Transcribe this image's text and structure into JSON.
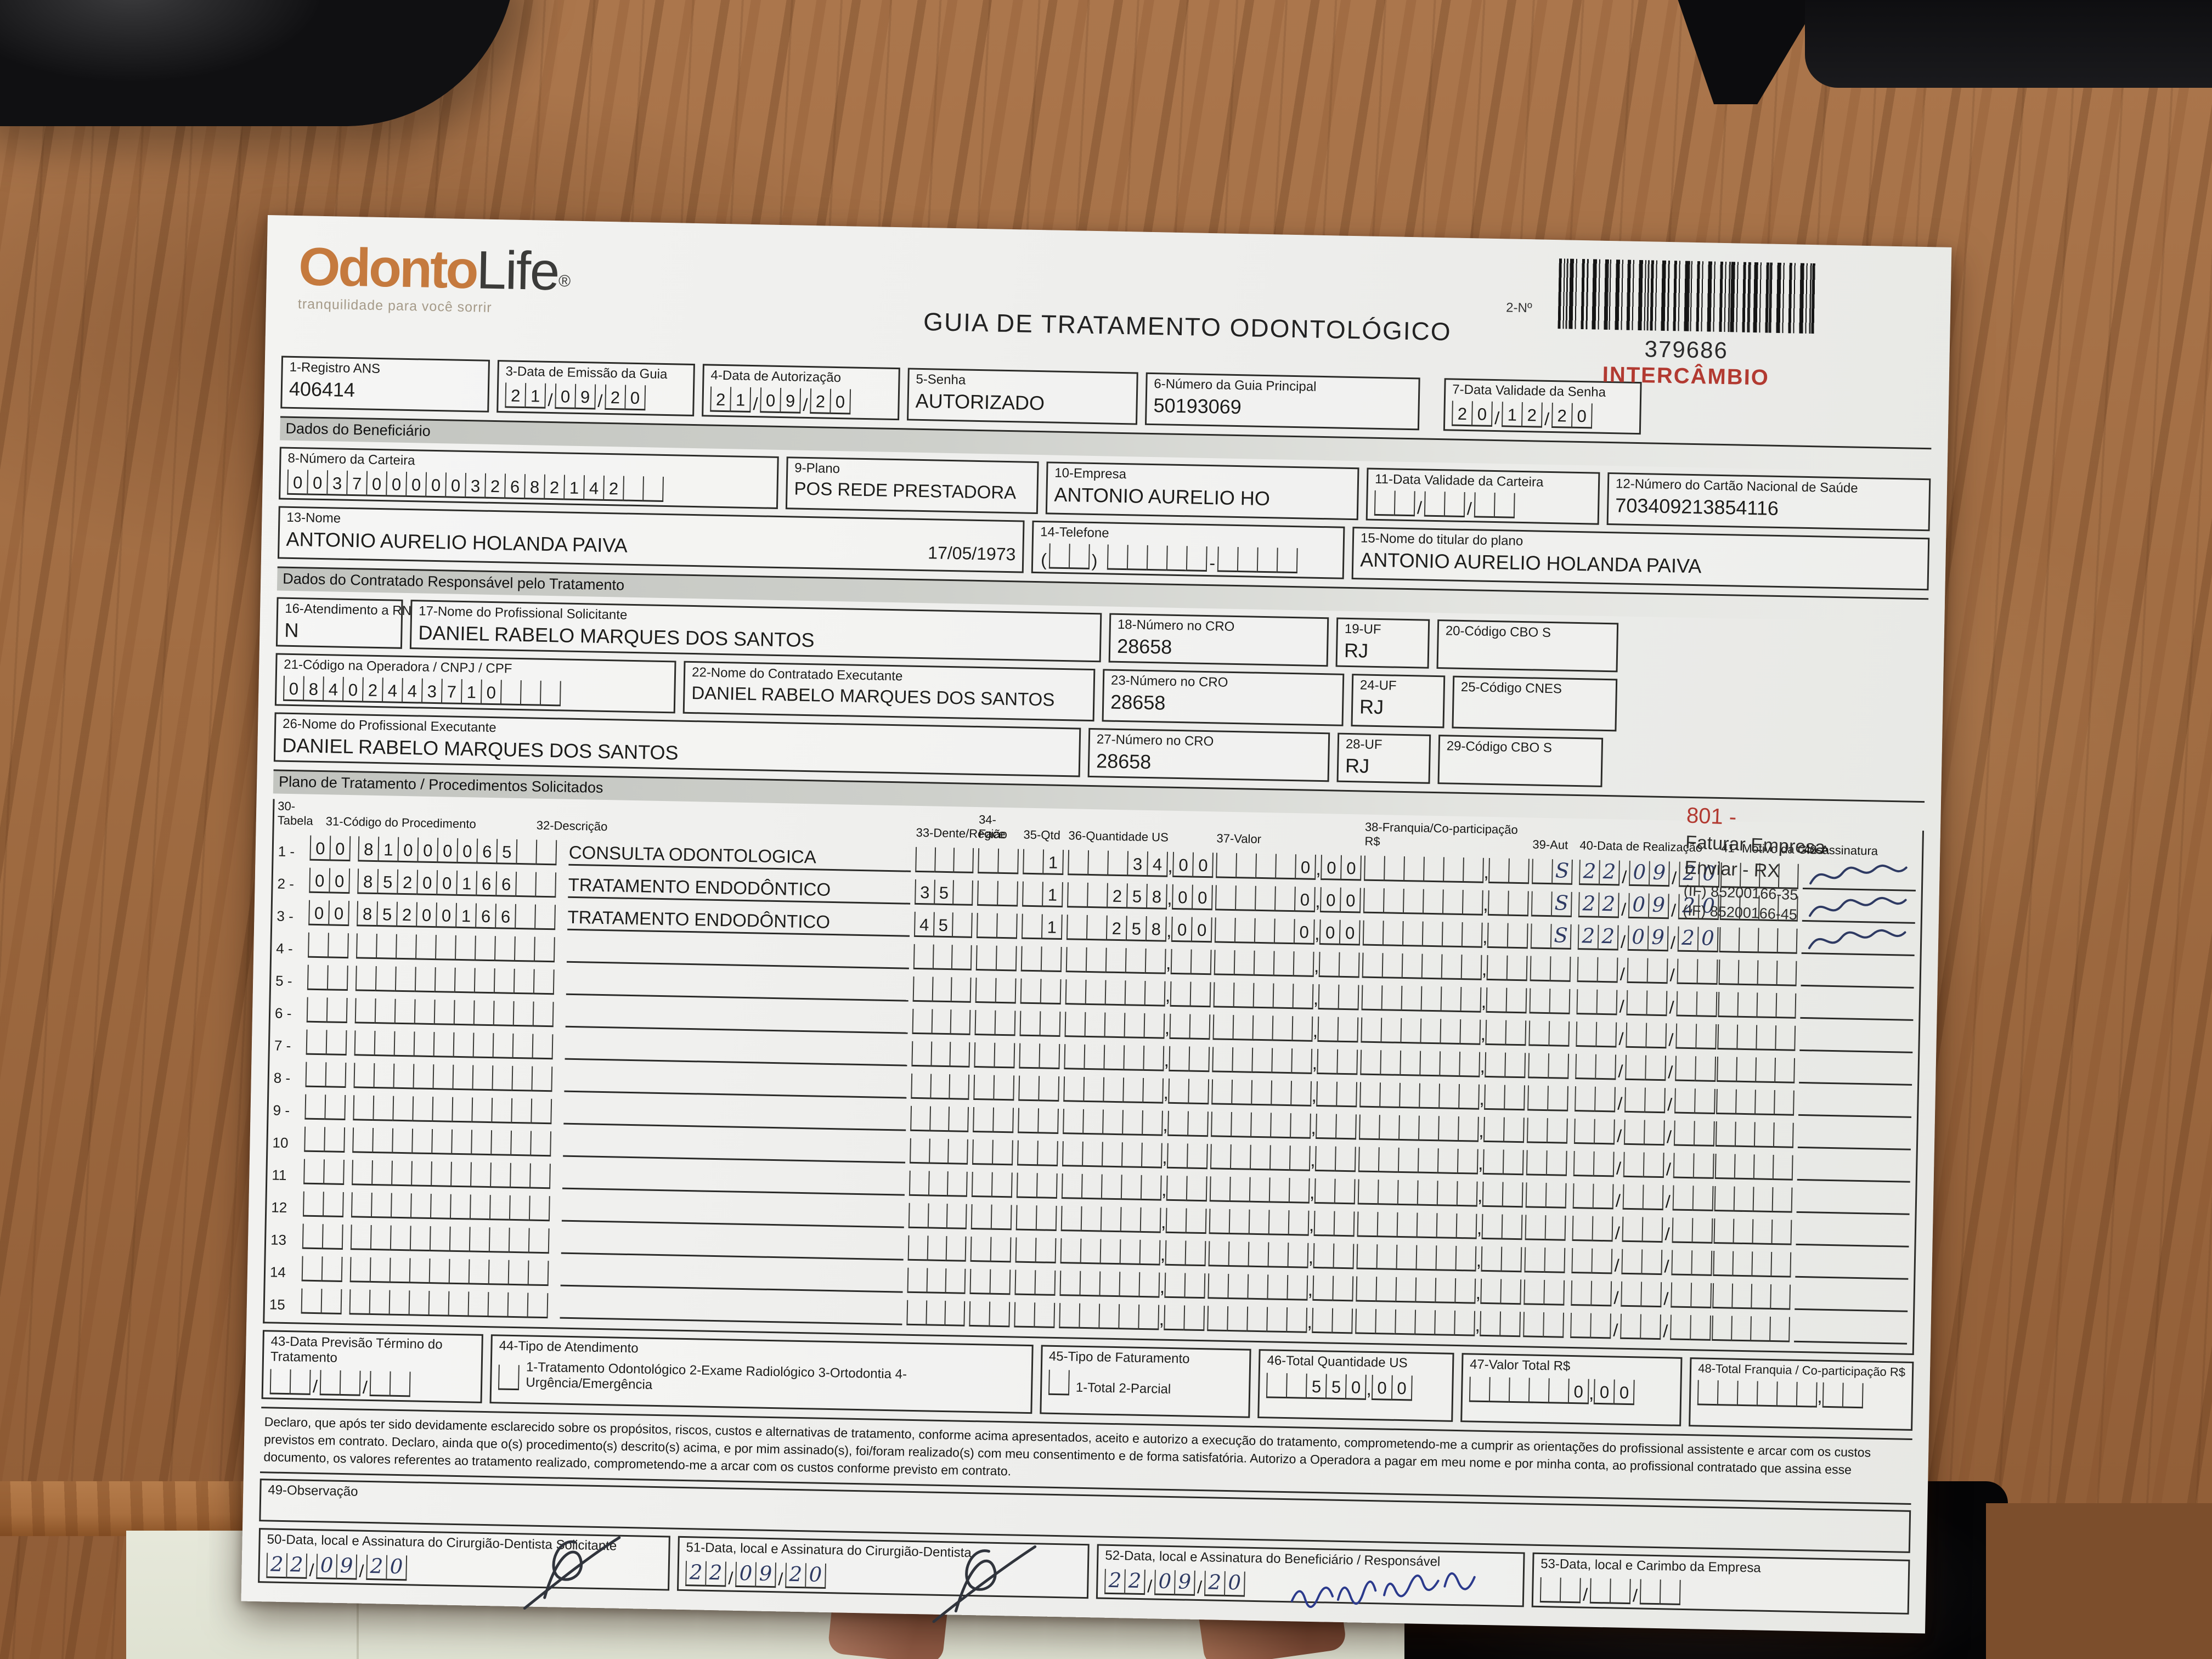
{
  "logo": {
    "part1": "Odonto",
    "part2": "Life",
    "reg": "®",
    "tagline": "tranquilidade para você sorrir"
  },
  "title": "GUIA DE TRATAMENTO ODONTOLÓGICO",
  "barcode": {
    "label": "2-Nº",
    "number": "379686",
    "stamp": "INTERCÂMBIO"
  },
  "colors": {
    "accent_red": "#b23a31",
    "logo_orange": "#c57a3e"
  },
  "sections": {
    "beneficiario": "Dados do Beneficiário",
    "contratado": "Dados do Contratado Responsável pelo Tratamento",
    "plano": "Plano de Tratamento / Procedimentos Solicitados"
  },
  "fields": {
    "f1": {
      "label": "1-Registro ANS",
      "value": "406414"
    },
    "f3": {
      "label": "3-Data de Emissão da Guia",
      "dd": "21",
      "mm": "09",
      "yy": "20"
    },
    "f4": {
      "label": "4-Data de Autorização",
      "dd": "21",
      "mm": "09",
      "yy": "20"
    },
    "f5": {
      "label": "5-Senha",
      "value": "AUTORIZADO"
    },
    "f6": {
      "label": "6-Número da Guia Principal",
      "value": "50193069"
    },
    "f7": {
      "label": "7-Data Validade da Senha",
      "dd": "20",
      "mm": "12",
      "yy": "20"
    },
    "f8": {
      "label": "8-Número da Carteira",
      "digits": "00370000032682142"
    },
    "f9": {
      "label": "9-Plano",
      "value": "POS REDE PRESTADORA"
    },
    "f10": {
      "label": "10-Empresa",
      "value": "ANTONIO AURELIO HO"
    },
    "f11": {
      "label": "11-Data Validade da Carteira",
      "dd": "",
      "mm": "",
      "yy": ""
    },
    "f12": {
      "label": "12-Número do Cartão Nacional de Saúde",
      "value": "703409213854116"
    },
    "f13": {
      "label": "13-Nome",
      "value": "ANTONIO AURELIO HOLANDA PAIVA",
      "birthdate": "17/05/1973"
    },
    "f14": {
      "label": "14-Telefone",
      "ddd": "",
      "part1": "",
      "part2": ""
    },
    "f15": {
      "label": "15-Nome do titular do plano",
      "value": "ANTONIO AURELIO HOLANDA PAIVA"
    },
    "f16": {
      "label": "16-Atendimento a RN",
      "value": "N"
    },
    "f17": {
      "label": "17-Nome do Profissional Solicitante",
      "value": "DANIEL RABELO MARQUES DOS SANTOS"
    },
    "f18": {
      "label": "18-Número no CRO",
      "value": "28658"
    },
    "f19": {
      "label": "19-UF",
      "value": "RJ"
    },
    "f20": {
      "label": "20-Código CBO S",
      "value": ""
    },
    "f21": {
      "label": "21-Código na Operadora / CNPJ / CPF",
      "digits": "08402443710"
    },
    "f22": {
      "label": "22-Nome do Contratado Executante",
      "value": "DANIEL RABELO MARQUES DOS SANTOS"
    },
    "f23": {
      "label": "23-Número no CRO",
      "value": "28658"
    },
    "f24": {
      "label": "24-UF",
      "value": "RJ"
    },
    "f25": {
      "label": "25-Código CNES",
      "value": ""
    },
    "f26": {
      "label": "26-Nome do Profissional Executante",
      "value": "DANIEL RABELO MARQUES DOS SANTOS"
    },
    "f27": {
      "label": "27-Número no CRO",
      "value": "28658"
    },
    "f28": {
      "label": "28-UF",
      "value": "RJ"
    },
    "f29": {
      "label": "29-Código CBO S",
      "value": ""
    }
  },
  "stamp": {
    "code": "801 -",
    "line1": "Faturar Empresa",
    "line2": "Enviar - RX",
    "line3": "(IF) 85200166-35",
    "line4": "(IF) 85200166-45"
  },
  "table": {
    "headers": {
      "h30": "30-Tabela",
      "h31": "31-Código do Procedimento",
      "h32": "32-Descrição",
      "h33": "33-Dente/Região",
      "h34": "34-Face",
      "h35": "35-Qtd",
      "h36": "36-Quantidade US",
      "h37": "37-Valor",
      "h38": "38-Franquia/Co-participação R$",
      "h39": "39-Aut",
      "h40": "40-Data de Realização",
      "h41": "41- Motivo da Glosa",
      "h42": "42-Assinatura"
    },
    "rows": [
      {
        "n": "1 -",
        "tabela": "00",
        "codigo": "81000065",
        "desc": "CONSULTA ODONTOLOGICA",
        "dente": "",
        "face": "",
        "qtd": " 1",
        "us": "   34",
        "usc": "00",
        "valor": "    0",
        "valorc": "00",
        "fr": "",
        "frc": "",
        "aut": " S",
        "dd": "22",
        "mm": "09",
        "yy": "20",
        "glosa": "",
        "signed": true
      },
      {
        "n": "2 -",
        "tabela": "00",
        "codigo": "85200166",
        "desc": "TRATAMENTO ENDODÔNTICO",
        "dente": "35",
        "face": "",
        "qtd": " 1",
        "us": "  258",
        "usc": "00",
        "valor": "    0",
        "valorc": "00",
        "fr": "",
        "frc": "",
        "aut": " S",
        "dd": "22",
        "mm": "09",
        "yy": "20",
        "glosa": "",
        "signed": true
      },
      {
        "n": "3 -",
        "tabela": "00",
        "codigo": "85200166",
        "desc": "TRATAMENTO ENDODÔNTICO",
        "dente": "45",
        "face": "",
        "qtd": " 1",
        "us": "  258",
        "usc": "00",
        "valor": "    0",
        "valorc": "00",
        "fr": "",
        "frc": "",
        "aut": " S",
        "dd": "22",
        "mm": "09",
        "yy": "20",
        "glosa": "",
        "signed": true
      },
      {
        "n": "4 -",
        "tabela": "",
        "codigo": "",
        "desc": "",
        "dente": "",
        "face": "",
        "qtd": "",
        "us": "",
        "usc": "",
        "valor": "",
        "valorc": "",
        "fr": "",
        "frc": "",
        "aut": "",
        "dd": "",
        "mm": "",
        "yy": "",
        "glosa": "",
        "signed": false
      },
      {
        "n": "5 -",
        "tabela": "",
        "codigo": "",
        "desc": "",
        "dente": "",
        "face": "",
        "qtd": "",
        "us": "",
        "usc": "",
        "valor": "",
        "valorc": "",
        "fr": "",
        "frc": "",
        "aut": "",
        "dd": "",
        "mm": "",
        "yy": "",
        "glosa": "",
        "signed": false
      },
      {
        "n": "6 -",
        "tabela": "",
        "codigo": "",
        "desc": "",
        "dente": "",
        "face": "",
        "qtd": "",
        "us": "",
        "usc": "",
        "valor": "",
        "valorc": "",
        "fr": "",
        "frc": "",
        "aut": "",
        "dd": "",
        "mm": "",
        "yy": "",
        "glosa": "",
        "signed": false
      },
      {
        "n": "7 -",
        "tabela": "",
        "codigo": "",
        "desc": "",
        "dente": "",
        "face": "",
        "qtd": "",
        "us": "",
        "usc": "",
        "valor": "",
        "valorc": "",
        "fr": "",
        "frc": "",
        "aut": "",
        "dd": "",
        "mm": "",
        "yy": "",
        "glosa": "",
        "signed": false
      },
      {
        "n": "8 -",
        "tabela": "",
        "codigo": "",
        "desc": "",
        "dente": "",
        "face": "",
        "qtd": "",
        "us": "",
        "usc": "",
        "valor": "",
        "valorc": "",
        "fr": "",
        "frc": "",
        "aut": "",
        "dd": "",
        "mm": "",
        "yy": "",
        "glosa": "",
        "signed": false
      },
      {
        "n": "9 -",
        "tabela": "",
        "codigo": "",
        "desc": "",
        "dente": "",
        "face": "",
        "qtd": "",
        "us": "",
        "usc": "",
        "valor": "",
        "valorc": "",
        "fr": "",
        "frc": "",
        "aut": "",
        "dd": "",
        "mm": "",
        "yy": "",
        "glosa": "",
        "signed": false
      },
      {
        "n": "10",
        "tabela": "",
        "codigo": "",
        "desc": "",
        "dente": "",
        "face": "",
        "qtd": "",
        "us": "",
        "usc": "",
        "valor": "",
        "valorc": "",
        "fr": "",
        "frc": "",
        "aut": "",
        "dd": "",
        "mm": "",
        "yy": "",
        "glosa": "",
        "signed": false
      },
      {
        "n": "11",
        "tabela": "",
        "codigo": "",
        "desc": "",
        "dente": "",
        "face": "",
        "qtd": "",
        "us": "",
        "usc": "",
        "valor": "",
        "valorc": "",
        "fr": "",
        "frc": "",
        "aut": "",
        "dd": "",
        "mm": "",
        "yy": "",
        "glosa": "",
        "signed": false
      },
      {
        "n": "12",
        "tabela": "",
        "codigo": "",
        "desc": "",
        "dente": "",
        "face": "",
        "qtd": "",
        "us": "",
        "usc": "",
        "valor": "",
        "valorc": "",
        "fr": "",
        "frc": "",
        "aut": "",
        "dd": "",
        "mm": "",
        "yy": "",
        "glosa": "",
        "signed": false
      },
      {
        "n": "13",
        "tabela": "",
        "codigo": "",
        "desc": "",
        "dente": "",
        "face": "",
        "qtd": "",
        "us": "",
        "usc": "",
        "valor": "",
        "valorc": "",
        "fr": "",
        "frc": "",
        "aut": "",
        "dd": "",
        "mm": "",
        "yy": "",
        "glosa": "",
        "signed": false
      },
      {
        "n": "14",
        "tabela": "",
        "codigo": "",
        "desc": "",
        "dente": "",
        "face": "",
        "qtd": "",
        "us": "",
        "usc": "",
        "valor": "",
        "valorc": "",
        "fr": "",
        "frc": "",
        "aut": "",
        "dd": "",
        "mm": "",
        "yy": "",
        "glosa": "",
        "signed": false
      },
      {
        "n": "15",
        "tabela": "",
        "codigo": "",
        "desc": "",
        "dente": "",
        "face": "",
        "qtd": "",
        "us": "",
        "usc": "",
        "valor": "",
        "valorc": "",
        "fr": "",
        "frc": "",
        "aut": "",
        "dd": "",
        "mm": "",
        "yy": "",
        "glosa": "",
        "signed": false
      }
    ]
  },
  "bottom": {
    "f43": {
      "label": "43-Data Previsão Término do Tratamento",
      "dd": "",
      "mm": "",
      "yy": ""
    },
    "f44": {
      "label": "44-Tipo de Atendimento",
      "check": "",
      "options": "1-Tratamento Odontológico  2-Exame Radiológico  3-Ortodontia  4-Urgência/Emergência"
    },
    "f45": {
      "label": "45-Tipo de Faturamento",
      "check": "",
      "options": "1-Total  2-Parcial"
    },
    "f46": {
      "label": "46-Total Quantidade US",
      "int": "  550",
      "cents": "00"
    },
    "f47": {
      "label": "47-Valor Total R$",
      "int": "     0",
      "cents": "00"
    },
    "f48": {
      "label": "48-Total Franquia / Co-participação R$",
      "int": "",
      "cents": ""
    }
  },
  "declaration": "Declaro, que após ter sido devidamente esclarecido sobre os propósitos, riscos, custos e alternativas de tratamento, conforme acima apresentados, aceito e autorizo a execução do tratamento, comprometendo-me a cumprir as orientações do profissional assistente e arcar com os custos previstos em contrato. Declaro, ainda que o(s) procedimento(s) descrito(s) acima, e por mim assinado(s), foi/foram realizado(s) com meu consentimento e de forma satisfatória. Autorizo a Operadora a pagar em meu nome e por minha conta, ao profissional contratado que assina esse documento, os valores referentes ao tratamento realizado, comprometendo-me a arcar com os custos conforme previsto em contrato.",
  "obs": {
    "label": "49-Observação",
    "value": ""
  },
  "footer": {
    "f50": {
      "label": "50-Data, local e Assinatura do Cirurgião-Dentista Solicitante",
      "dd": "22",
      "mm": "09",
      "yy": "20",
      "signed": true
    },
    "f51": {
      "label": "51-Data, local e Assinatura do Cirurgião-Dentista",
      "dd": "22",
      "mm": "09",
      "yy": "20",
      "signed": true
    },
    "f52": {
      "label": "52-Data, local e Assinatura do Beneficiário / Responsável",
      "dd": "22",
      "mm": "09",
      "yy": "20",
      "signed": true
    },
    "f53": {
      "label": "53-Data, local e Carimbo da Empresa",
      "dd": "",
      "mm": "",
      "yy": ""
    }
  }
}
